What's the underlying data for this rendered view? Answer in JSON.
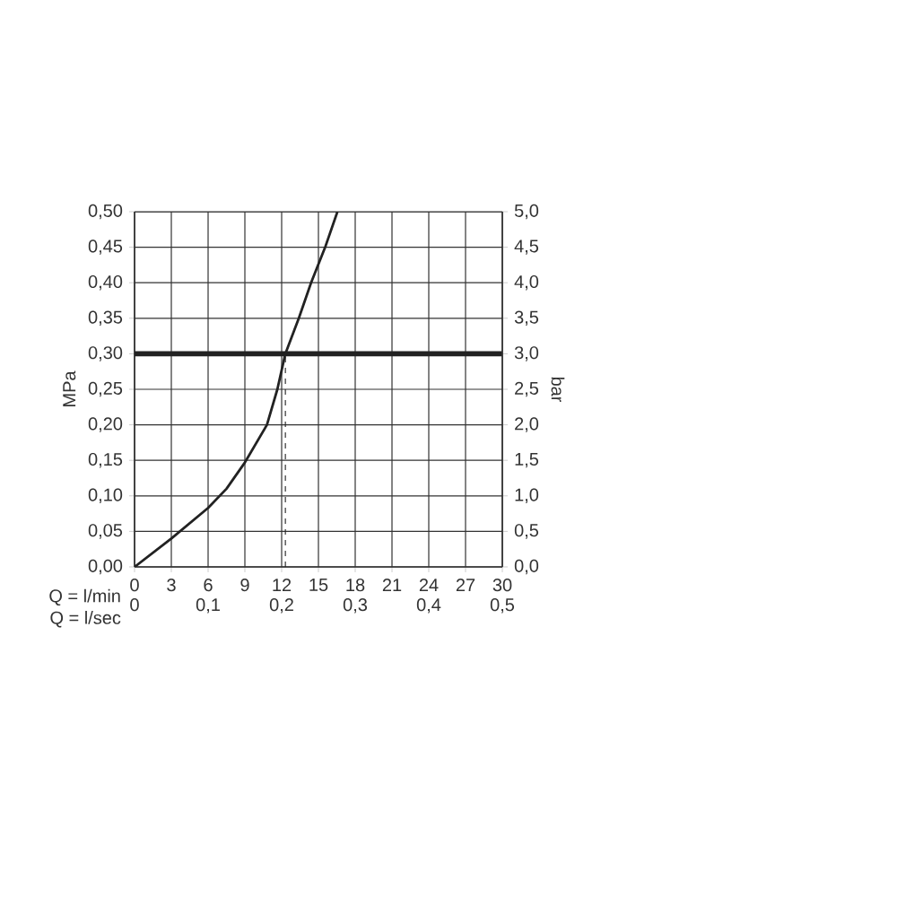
{
  "chart_data": {
    "type": "line",
    "xlabel": "Q = l/min",
    "ylabel": "MPa",
    "y2label": "bar",
    "x2label": "Q = l/sec",
    "xlim": [
      0,
      30
    ],
    "ylim": [
      0,
      0.5
    ],
    "y2lim": [
      0,
      5
    ],
    "x2lim": [
      0,
      0.5
    ],
    "xticks": [
      0,
      3,
      6,
      9,
      12,
      15,
      18,
      21,
      24,
      27,
      30
    ],
    "yticks": [
      {
        "value": 0,
        "label": "0,00"
      },
      {
        "value": 0.05,
        "label": "0,05"
      },
      {
        "value": 0.1,
        "label": "0,10"
      },
      {
        "value": 0.15,
        "label": "0,15"
      },
      {
        "value": 0.2,
        "label": "0,20"
      },
      {
        "value": 0.25,
        "label": "0,25"
      },
      {
        "value": 0.3,
        "label": "0,30"
      },
      {
        "value": 0.35,
        "label": "0,35"
      },
      {
        "value": 0.4,
        "label": "0,40"
      },
      {
        "value": 0.45,
        "label": "0,45"
      },
      {
        "value": 0.5,
        "label": "0,50"
      }
    ],
    "y2ticks": [
      {
        "value": 0,
        "label": "0,0"
      },
      {
        "value": 0.5,
        "label": "0,5"
      },
      {
        "value": 1,
        "label": "1,0"
      },
      {
        "value": 1.5,
        "label": "1,5"
      },
      {
        "value": 2,
        "label": "2,0"
      },
      {
        "value": 2.5,
        "label": "2,5"
      },
      {
        "value": 3,
        "label": "3,0"
      },
      {
        "value": 3.5,
        "label": "3,5"
      },
      {
        "value": 4,
        "label": "4,0"
      },
      {
        "value": 4.5,
        "label": "4,5"
      },
      {
        "value": 5,
        "label": "5,0"
      }
    ],
    "x2ticks": [
      0,
      {
        "value": 0.1,
        "label": "0,1"
      },
      {
        "value": 0.2,
        "label": "0,2"
      },
      {
        "value": 0.3,
        "label": "0,3"
      },
      {
        "value": 0.4,
        "label": "0,4"
      },
      {
        "value": 0.5,
        "label": "0,5"
      }
    ],
    "grid": true,
    "series": [
      {
        "color": "#222222",
        "line_style": "solid",
        "x": [
          0,
          3,
          6,
          7.5,
          9,
          10.8,
          11.65,
          12.3,
          13.4,
          14.4,
          15.55,
          16.55
        ],
        "values": [
          0,
          0.04,
          0.083,
          0.11,
          0.147,
          0.2,
          0.25,
          0.3,
          0.35,
          0.4,
          0.45,
          0.5
        ]
      },
      {
        "color": "#222222",
        "line_style": "dashed",
        "x": [
          12.3,
          12.3
        ],
        "values": [
          0,
          0.3
        ]
      }
    ],
    "ref_lines": [
      {
        "axis": "y",
        "value": 0.3,
        "color": "#222222"
      }
    ]
  }
}
